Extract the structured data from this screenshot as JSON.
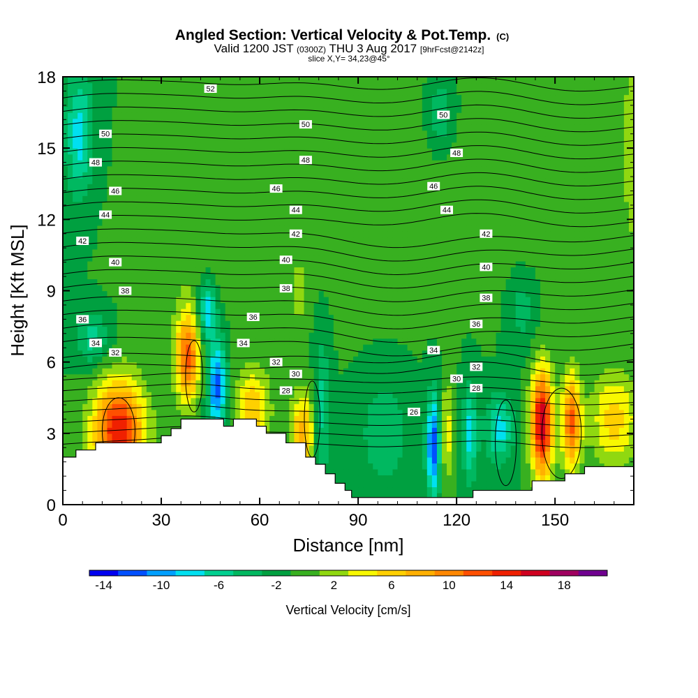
{
  "chart_data": {
    "type": "heatmap",
    "title": "Angled Section: Vertical Velocity & Pot.Temp.",
    "title_unit": "(C)",
    "subtitle_parts": [
      "Valid 1200 JST ",
      "(0300Z)",
      " THU 3 Aug 2017 ",
      "[9hrFcst@2142z]"
    ],
    "subtitle2": "slice X,Y= 34,23@45°",
    "xlabel": "Distance [nm]",
    "ylabel": "Height [Kft MSL]",
    "xlim": [
      0,
      174
    ],
    "ylim": [
      0,
      18
    ],
    "xticks": [
      0,
      30,
      60,
      90,
      120,
      150
    ],
    "yticks": [
      0,
      3,
      6,
      9,
      12,
      15,
      18
    ],
    "colorbar": {
      "label": "Vertical Velocity [cm/s]",
      "min": -15,
      "step": 2,
      "tick_values": [
        -14,
        -10,
        -6,
        -2,
        2,
        6,
        10,
        14,
        18
      ],
      "tick_labels": [
        "-14",
        "-10",
        "-6",
        "-2",
        "2",
        "6",
        "10",
        "14",
        "18"
      ],
      "colors": [
        "#0000f0",
        "#0050ff",
        "#00a0ff",
        "#00e0f0",
        "#00d090",
        "#00b860",
        "#00a040",
        "#38b020",
        "#90d810",
        "#f8f800",
        "#ffd000",
        "#ffb000",
        "#ff8800",
        "#ff5000",
        "#f02000",
        "#d00020",
        "#a00060",
        "#700090"
      ]
    },
    "contour_field": "Potential temperature (C)",
    "contour_labels": [
      {
        "x": 45,
        "y": 17.5,
        "text": "52"
      },
      {
        "x": 13,
        "y": 15.6,
        "text": "50"
      },
      {
        "x": 74,
        "y": 16.0,
        "text": "50"
      },
      {
        "x": 116,
        "y": 16.4,
        "text": "50"
      },
      {
        "x": 10,
        "y": 14.4,
        "text": "48"
      },
      {
        "x": 74,
        "y": 14.5,
        "text": "48"
      },
      {
        "x": 120,
        "y": 14.8,
        "text": "48"
      },
      {
        "x": 16,
        "y": 13.2,
        "text": "46"
      },
      {
        "x": 65,
        "y": 13.3,
        "text": "46"
      },
      {
        "x": 113,
        "y": 13.4,
        "text": "46"
      },
      {
        "x": 13,
        "y": 12.2,
        "text": "44"
      },
      {
        "x": 71,
        "y": 12.4,
        "text": "44"
      },
      {
        "x": 117,
        "y": 12.4,
        "text": "44"
      },
      {
        "x": 6,
        "y": 11.1,
        "text": "42"
      },
      {
        "x": 71,
        "y": 11.4,
        "text": "42"
      },
      {
        "x": 129,
        "y": 11.4,
        "text": "42"
      },
      {
        "x": 16,
        "y": 10.2,
        "text": "40"
      },
      {
        "x": 68,
        "y": 10.3,
        "text": "40"
      },
      {
        "x": 129,
        "y": 10.0,
        "text": "40"
      },
      {
        "x": 19,
        "y": 9.0,
        "text": "38"
      },
      {
        "x": 68,
        "y": 9.1,
        "text": "38"
      },
      {
        "x": 129,
        "y": 8.7,
        "text": "38"
      },
      {
        "x": 6,
        "y": 7.8,
        "text": "36"
      },
      {
        "x": 58,
        "y": 7.9,
        "text": "36"
      },
      {
        "x": 126,
        "y": 7.6,
        "text": "36"
      },
      {
        "x": 10,
        "y": 6.8,
        "text": "34"
      },
      {
        "x": 55,
        "y": 6.8,
        "text": "34"
      },
      {
        "x": 113,
        "y": 6.5,
        "text": "34"
      },
      {
        "x": 16,
        "y": 6.4,
        "text": "32"
      },
      {
        "x": 65,
        "y": 6.0,
        "text": "32"
      },
      {
        "x": 126,
        "y": 5.8,
        "text": "32"
      },
      {
        "x": 71,
        "y": 5.5,
        "text": "30"
      },
      {
        "x": 120,
        "y": 5.3,
        "text": "30"
      },
      {
        "x": 68,
        "y": 4.8,
        "text": "28"
      },
      {
        "x": 126,
        "y": 4.9,
        "text": "28"
      },
      {
        "x": 107,
        "y": 3.9,
        "text": "26"
      }
    ]
  }
}
